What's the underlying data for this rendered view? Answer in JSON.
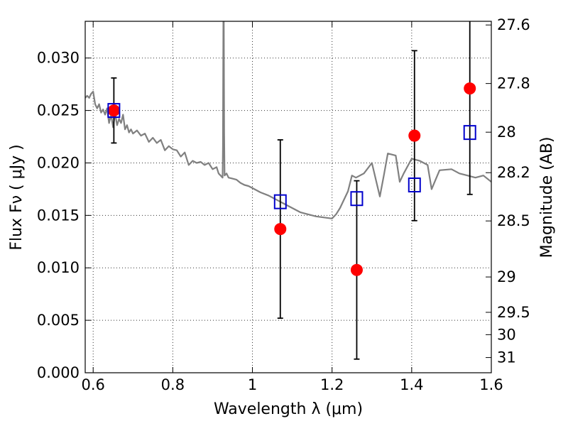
{
  "chart_data": {
    "type": "scatter",
    "xlabel": "Wavelength  λ (μm)",
    "ylabel": "Flux  Fν  ( μJy )",
    "ylabel_right": "Magnitude (AB)",
    "xlim": [
      0.58,
      1.6
    ],
    "ylim": [
      0.0,
      0.0335
    ],
    "grid": true,
    "x_ticks": [
      0.6,
      0.8,
      1.0,
      1.2,
      1.4,
      1.6
    ],
    "x_tick_labels": [
      "0.6",
      "0.8",
      "1",
      "1.2",
      "1.4",
      "1.6"
    ],
    "y_ticks": [
      0.0,
      0.005,
      0.01,
      0.015,
      0.02,
      0.025,
      0.03
    ],
    "y_tick_labels": [
      "0.000",
      "0.005",
      "0.010",
      "0.015",
      "0.020",
      "0.025",
      "0.030"
    ],
    "right_ticks": [
      {
        "label": "27.6",
        "flux": 0.03315
      },
      {
        "label": "27.8",
        "flux": 0.02757
      },
      {
        "label": "28",
        "flux": 0.02293
      },
      {
        "label": "28.2",
        "flux": 0.01907
      },
      {
        "label": "28.5",
        "flux": 0.01447
      },
      {
        "label": "29",
        "flux": 0.00913
      },
      {
        "label": "29.5",
        "flux": 0.00576
      },
      {
        "label": "30",
        "flux": 0.00363
      },
      {
        "label": "31",
        "flux": 0.00145
      }
    ],
    "series": [
      {
        "type": "line",
        "color": "#808080",
        "x": [
          0.58,
          0.585,
          0.59,
          0.595,
          0.6,
          0.605,
          0.61,
          0.615,
          0.62,
          0.625,
          0.63,
          0.635,
          0.64,
          0.645,
          0.65,
          0.655,
          0.66,
          0.665,
          0.67,
          0.675,
          0.68,
          0.685,
          0.69,
          0.695,
          0.7,
          0.71,
          0.72,
          0.73,
          0.74,
          0.75,
          0.76,
          0.77,
          0.78,
          0.79,
          0.8,
          0.81,
          0.82,
          0.83,
          0.84,
          0.85,
          0.86,
          0.87,
          0.88,
          0.89,
          0.9,
          0.91,
          0.915,
          0.92,
          0.925,
          0.926,
          0.927,
          0.928,
          0.929,
          0.93,
          0.935,
          0.94,
          0.95,
          0.96,
          0.97,
          0.98,
          0.99,
          1.0,
          1.02,
          1.04,
          1.06,
          1.08,
          1.1,
          1.12,
          1.14,
          1.16,
          1.18,
          1.2,
          1.21,
          1.22,
          1.24,
          1.25,
          1.26,
          1.28,
          1.3,
          1.32,
          1.33,
          1.34,
          1.36,
          1.37,
          1.38,
          1.4,
          1.42,
          1.44,
          1.45,
          1.47,
          1.5,
          1.52,
          1.54,
          1.56,
          1.58,
          1.6
        ],
        "y": [
          0.0262,
          0.0264,
          0.0262,
          0.0266,
          0.0268,
          0.0256,
          0.0252,
          0.0256,
          0.0248,
          0.0251,
          0.0246,
          0.0252,
          0.0238,
          0.0246,
          0.0234,
          0.0247,
          0.0236,
          0.0242,
          0.0238,
          0.0246,
          0.0232,
          0.0236,
          0.0229,
          0.0232,
          0.0228,
          0.0231,
          0.0226,
          0.0228,
          0.022,
          0.0224,
          0.0219,
          0.0222,
          0.0212,
          0.0216,
          0.0213,
          0.0212,
          0.0206,
          0.021,
          0.0198,
          0.0202,
          0.02,
          0.0201,
          0.0198,
          0.02,
          0.0194,
          0.0196,
          0.019,
          0.0188,
          0.0186,
          0.0215,
          0.0335,
          0.0335,
          0.023,
          0.0188,
          0.019,
          0.0186,
          0.0185,
          0.0184,
          0.0181,
          0.0179,
          0.0178,
          0.0176,
          0.0172,
          0.0169,
          0.0165,
          0.0161,
          0.0157,
          0.0153,
          0.0151,
          0.0149,
          0.0148,
          0.0147,
          0.0151,
          0.0157,
          0.0173,
          0.0188,
          0.0186,
          0.019,
          0.02,
          0.0168,
          0.0188,
          0.0209,
          0.0207,
          0.0182,
          0.019,
          0.0204,
          0.0202,
          0.0198,
          0.0175,
          0.0193,
          0.0194,
          0.019,
          0.0188,
          0.0186,
          0.0188,
          0.0182
        ]
      },
      {
        "type": "scatter",
        "marker": "circle",
        "color": "#ff0000",
        "x": [
          0.652,
          1.07,
          1.262,
          1.407,
          1.546
        ],
        "y": [
          0.025,
          0.0137,
          0.0098,
          0.0226,
          0.0271
        ],
        "err": [
          0.0031,
          0.0085,
          0.0085,
          0.0081,
          0.0101
        ]
      },
      {
        "type": "scatter",
        "marker": "square",
        "color": "#0000cc",
        "x": [
          0.652,
          1.07,
          1.262,
          1.407,
          1.546
        ],
        "y": [
          0.025,
          0.0163,
          0.0166,
          0.0179,
          0.0229
        ]
      }
    ]
  }
}
